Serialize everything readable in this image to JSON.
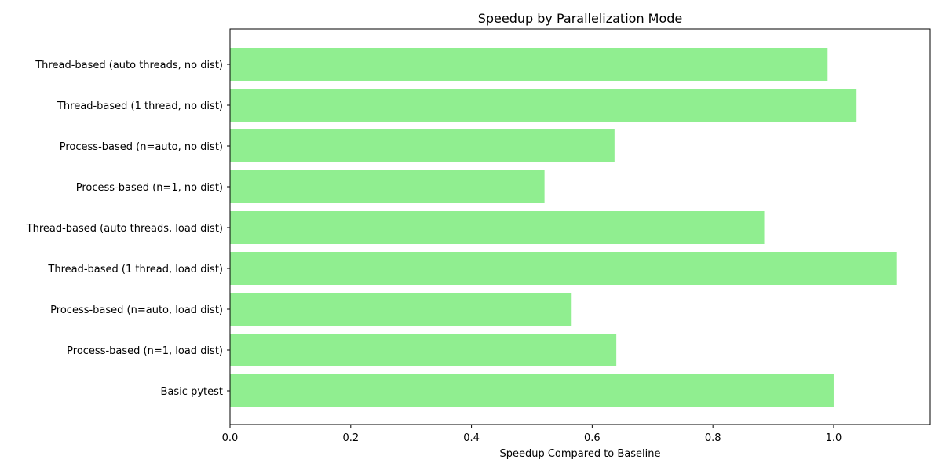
{
  "chart_data": {
    "type": "bar",
    "orientation": "horizontal",
    "title": "Speedup by Parallelization Mode",
    "xlabel": "Speedup Compared to Baseline",
    "ylabel": "",
    "xlim": [
      0,
      1.16
    ],
    "xticks": [
      "0.0",
      "0.2",
      "0.4",
      "0.6",
      "0.8",
      "1.0"
    ],
    "grid": false,
    "bar_color": "#90ee90",
    "categories": [
      "Basic pytest",
      "Process-based (n=1, load dist)",
      "Process-based (n=auto, load dist)",
      "Thread-based (1 thread, load dist)",
      "Thread-based (auto threads, load dist)",
      "Process-based (n=1, no dist)",
      "Process-based (n=auto, no dist)",
      "Thread-based (1 thread, no dist)",
      "Thread-based (auto threads, no dist)"
    ],
    "values": [
      1.0,
      0.64,
      0.566,
      1.105,
      0.885,
      0.521,
      0.637,
      1.038,
      0.99
    ]
  }
}
